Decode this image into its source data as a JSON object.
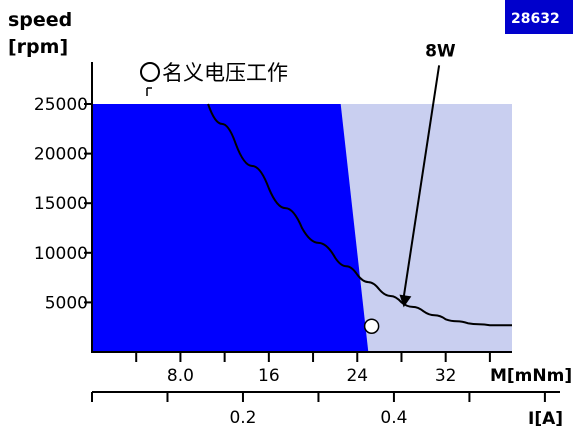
{
  "badge": {
    "label": "28632"
  },
  "chart_data": {
    "type": "area",
    "title": "",
    "ylabel_lines": [
      "speed",
      "[rpm]"
    ],
    "xlabel_torque": "M[mNm]",
    "xlabel_current": "I[A]",
    "ylim": [
      0,
      25000
    ],
    "y_ticks": [
      5000,
      10000,
      15000,
      20000,
      25000
    ],
    "y_tick_labels": [
      "5000",
      "10000",
      "15000",
      "20000",
      "25000"
    ],
    "xlim_torque": [
      0,
      38
    ],
    "x_ticks_torque": [
      8.0,
      16,
      24,
      32
    ],
    "x_tick_labels_torque": [
      "8.0",
      "16",
      "24",
      "32"
    ],
    "x_minor_ticks_torque": [
      4,
      12,
      20,
      28,
      36
    ],
    "xlim_current": [
      0,
      0.62
    ],
    "x_ticks_current": [
      0.2,
      0.4
    ],
    "x_tick_labels_current": [
      "0.2",
      "0.4"
    ],
    "x_minor_ticks_current": [
      0.1,
      0.3,
      0.5,
      0.6
    ],
    "continuous_region_boundary": [
      [
        22.5,
        25000
      ],
      [
        25.0,
        0
      ]
    ],
    "max_region": {
      "x_max": 38,
      "y_max": 25000
    },
    "legend": {
      "marker": "circle-open",
      "label": "名义电压工作",
      "position": "top-center"
    },
    "series": [
      {
        "name": "8W",
        "x": [
          10.5,
          13,
          16,
          19,
          22,
          24,
          26,
          28,
          30,
          32,
          34,
          36,
          38
        ],
        "y": [
          25000,
          21000,
          16500,
          12500,
          9500,
          7800,
          6300,
          5000,
          4100,
          3300,
          2900,
          2700,
          2700
        ]
      }
    ],
    "annotations": [
      {
        "label": "8W",
        "text_at": [
          30.5,
          29500
        ],
        "arrow_to": [
          28.2,
          4500
        ]
      }
    ],
    "operating_point": {
      "x": 25.3,
      "y": 2600
    },
    "colors": {
      "continuous": "#0000ff",
      "max_range": "#c9cff0",
      "curve": "#000000",
      "badge": "#0000cc"
    }
  }
}
